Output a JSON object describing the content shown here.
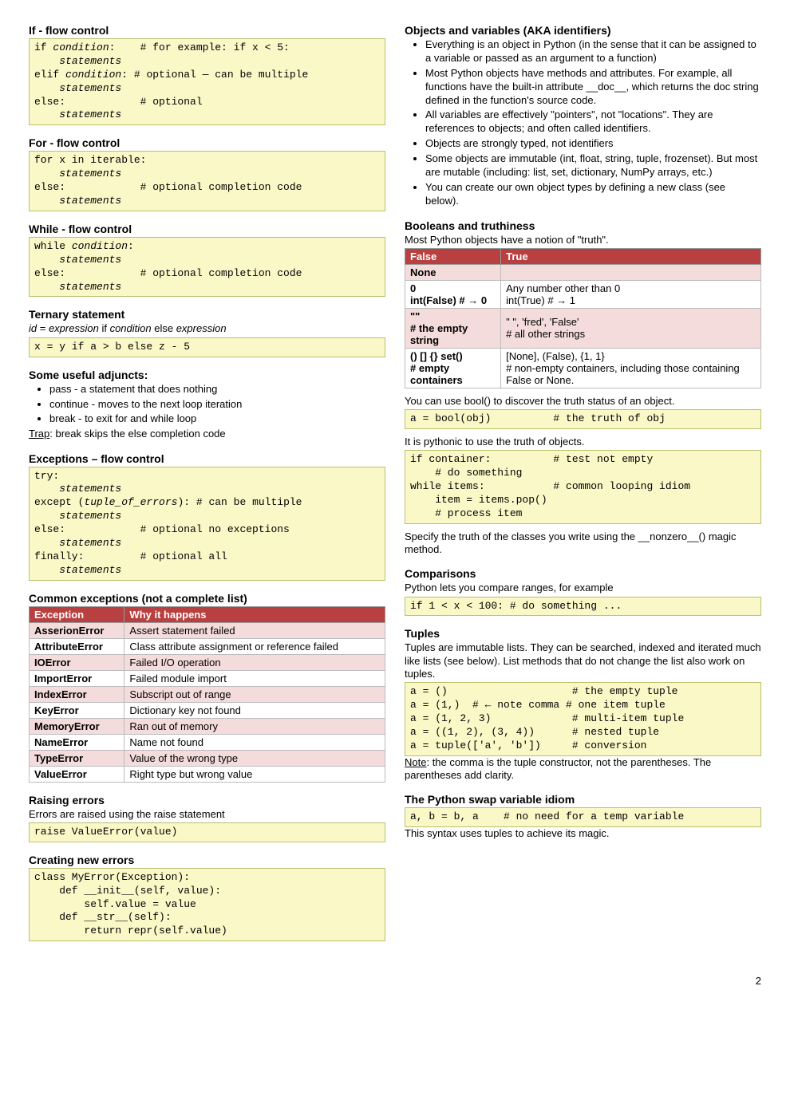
{
  "pageNumber": "2",
  "left": {
    "if": {
      "heading": "If - flow control",
      "code": "if <i>condition</i>:    # for example: if x < 5:\n    <i>statements</i>\nelif <i>condition</i>: # optional — can be multiple\n    <i>statements</i>\nelse:            # optional\n    <i>statements</i>"
    },
    "for": {
      "heading": "For - flow control",
      "code": "for x in iterable:\n    <i>statements</i>\nelse:            # optional completion code\n    <i>statements</i>"
    },
    "while": {
      "heading": "While - flow control",
      "code": "while <i>condition</i>:\n    <i>statements</i>\nelse:            # optional completion code\n    <i>statements</i>"
    },
    "ternary": {
      "heading": "Ternary statement",
      "synopsis": "<i>id</i> = <i>expression</i> if <i>condition</i> else <i>expression</i>",
      "code": "x = y if a > b else z - 5"
    },
    "adjuncts": {
      "heading": "Some useful adjuncts:",
      "items": [
        "pass - a statement that does nothing",
        "continue - moves to the next loop iteration",
        "break - to exit for and while loop"
      ],
      "trap": "<span class='under'>Trap</span>: break skips the else completion code"
    },
    "exceptions": {
      "heading": "Exceptions – flow control",
      "code": "try:\n    <i>statements</i>\nexcept (<i>tuple_of_errors</i>): # can be multiple\n    <i>statements</i>\nelse:            # optional no exceptions\n    <i>statements</i>\nfinally:         # optional all\n    <i>statements</i>"
    },
    "commonExc": {
      "heading": "Common exceptions (not a complete list)",
      "th1": "Exception",
      "th2": "Why it happens",
      "rows": [
        [
          "AsserionError",
          "Assert statement failed"
        ],
        [
          "AttributeError",
          "Class attribute assignment or reference failed"
        ],
        [
          "IOError",
          "Failed I/O operation"
        ],
        [
          "ImportError",
          "Failed module import"
        ],
        [
          "IndexError",
          "Subscript out of range"
        ],
        [
          "KeyError",
          "Dictionary key not found"
        ],
        [
          "MemoryError",
          "Ran out of memory"
        ],
        [
          "NameError",
          "Name not found"
        ],
        [
          "TypeError",
          "Value of the wrong type"
        ],
        [
          "ValueError",
          "Right type but wrong value"
        ]
      ]
    },
    "raising": {
      "heading": "Raising errors",
      "subtext": "Errors are raised using the raise statement",
      "code": "raise ValueError(value)"
    },
    "creating": {
      "heading": "Creating new errors",
      "code": "class MyError(Exception):\n    def __init__(self, value):\n        self.value = value\n    def __str__(self):\n        return repr(self.value)"
    }
  },
  "right": {
    "objects": {
      "heading": "Objects and variables (AKA identifiers)",
      "items": [
        "Everything is an object in Python (in the sense that it can be assigned to a variable or passed as an argument to a function)",
        "Most Python objects have methods and attributes. For example, all functions have the built-in attribute __doc__, which returns the doc string defined in the function's source code.",
        "All variables are effectively \"pointers\", not \"locations\". They are references to objects; and often called identifiers.",
        "Objects are strongly typed, not identifiers",
        "Some objects are immutable (int, float, string, tuple, frozenset). But most are mutable (including: list, set, dictionary, NumPy arrays, etc.)",
        "You can create our own object types by defining a new class (see below)."
      ]
    },
    "booleans": {
      "heading": "Booleans and truthiness",
      "subtext": "Most Python objects have a notion of \"truth\".",
      "th1": "False",
      "th2": "True",
      "rows": [
        [
          "<b>None</b>",
          ""
        ],
        [
          "<b>0</b><br><b>int(False) # → 0</b>",
          "Any number other than 0<br>int(True) # → 1"
        ],
        [
          "<b>\"\"</b><br><b># the empty string</b>",
          "\" \", 'fred', 'False'<br># all other strings"
        ],
        [
          "<b>() [] {} set()</b><br><b># empty containers</b>",
          "[None], (False), {1, 1}<br># non-empty containers, including those containing False or None."
        ]
      ],
      "after1": "You can use bool() to discover the truth status of an object.",
      "code1": "a = bool(obj)          # the truth of obj",
      "after2": "It is pythonic to use the truth of objects.",
      "code2": "if container:          # test not empty\n    # do something\nwhile items:           # common looping idiom\n    item = items.pop()\n    # process item",
      "after3": "Specify the truth of the classes you write using the __nonzero__() magic method."
    },
    "comparisons": {
      "heading": "Comparisons",
      "subtext": "Python lets you compare ranges, for example",
      "code": "if 1 < x < 100: # do something ..."
    },
    "tuples": {
      "heading": "Tuples",
      "subtext": "Tuples are immutable lists. They can be searched, indexed and iterated much like lists (see below). List methods that do not change the list also work on tuples.",
      "code": "a = ()                    # the empty tuple\na = (1,)  # ← note comma # one item tuple\na = (1, 2, 3)             # multi-item tuple\na = ((1, 2), (3, 4))      # nested tuple\na = tuple(['a', 'b'])     # conversion",
      "note": "<span class='under'>Note</span>: the comma is the tuple constructor, not the parentheses. The parentheses add clarity."
    },
    "swap": {
      "heading": "The Python swap variable idiom",
      "code": "a, b = b, a    # no need for a temp variable",
      "after": "This syntax uses tuples to achieve its magic."
    }
  }
}
